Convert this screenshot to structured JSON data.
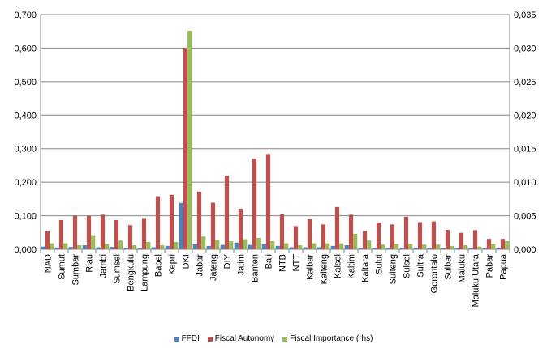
{
  "chart_data": {
    "type": "bar",
    "title": "",
    "xlabel": "",
    "ylabel": "",
    "y2label": "",
    "grid": true,
    "legend_position": "bottom",
    "ylim": [
      0,
      0.7
    ],
    "y2lim": [
      0,
      0.035
    ],
    "y_ticks": [
      "0,000",
      "0,100",
      "0,200",
      "0,300",
      "0,400",
      "0,500",
      "0,600",
      "0,700"
    ],
    "y2_ticks": [
      "0,000",
      "0,005",
      "0,010",
      "0,015",
      "0,020",
      "0,025",
      "0,030",
      "0,035"
    ],
    "categories": [
      "NAD",
      "Sumut",
      "Sumbar",
      "Riau",
      "Jambi",
      "Sumsel",
      "Bengkulu",
      "Lampung",
      "Babel",
      "Kepri",
      "DKI",
      "Jabar",
      "Jateng",
      "DIY",
      "Jatim",
      "Banten",
      "Bali",
      "NTB",
      "NTT",
      "Kalbar",
      "Kalteng",
      "Kalsel",
      "Kaltim",
      "Kaltara",
      "Sulut",
      "Sulteng",
      "Sulsel",
      "Sultra",
      "Gorontalo",
      "Sulbar",
      "Maluku",
      "Maluku Utara",
      "Pabar",
      "Papua"
    ],
    "series": [
      {
        "name": "FFDI",
        "axis": "left",
        "color": "#4f81bd",
        "values": [
          0.008,
          0.005,
          0.007,
          0.012,
          0.006,
          0.007,
          0.004,
          0.005,
          0.006,
          0.01,
          0.138,
          0.015,
          0.01,
          0.013,
          0.02,
          0.013,
          0.015,
          0.01,
          0.006,
          0.006,
          0.006,
          0.01,
          0.012,
          0.004,
          0.004,
          0.004,
          0.005,
          0.004,
          0.004,
          0.003,
          0.003,
          0.003,
          0.003,
          0.003
        ]
      },
      {
        "name": "Fiscal Autonomy",
        "axis": "left",
        "color": "#c0504d",
        "values": [
          0.054,
          0.087,
          0.1,
          0.1,
          0.103,
          0.087,
          0.072,
          0.093,
          0.158,
          0.162,
          0.6,
          0.172,
          0.139,
          0.219,
          0.121,
          0.27,
          0.284,
          0.104,
          0.069,
          0.09,
          0.074,
          0.126,
          0.103,
          0.054,
          0.08,
          0.074,
          0.097,
          0.081,
          0.083,
          0.058,
          0.049,
          0.057,
          0.031,
          0.031
        ]
      },
      {
        "name": "Fiscal Importance (rhs)",
        "axis": "right",
        "color": "#9bbb59",
        "values": [
          0.0009,
          0.0009,
          0.0006,
          0.0021,
          0.0008,
          0.0013,
          0.0006,
          0.0011,
          0.0006,
          0.0011,
          0.0326,
          0.0019,
          0.0014,
          0.0012,
          0.0015,
          0.0017,
          0.0012,
          0.0009,
          0.0006,
          0.0009,
          0.0009,
          0.0009,
          0.0023,
          0.0013,
          0.0007,
          0.0008,
          0.0008,
          0.0007,
          0.0007,
          0.0005,
          0.0006,
          0.0004,
          0.0008,
          0.0012
        ]
      }
    ]
  }
}
